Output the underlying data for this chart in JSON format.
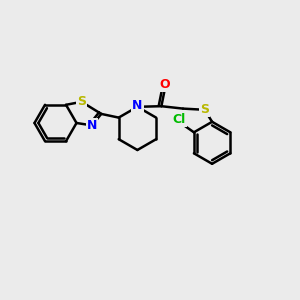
{
  "bg_color": "#ebebeb",
  "atom_colors": {
    "S": "#b8b800",
    "N": "#0000ff",
    "O": "#ff0000",
    "Cl": "#00bb00",
    "C": "#000000"
  },
  "bond_color": "#000000",
  "bond_width": 1.8,
  "fig_width": 3.0,
  "fig_height": 3.0,
  "dpi": 100
}
